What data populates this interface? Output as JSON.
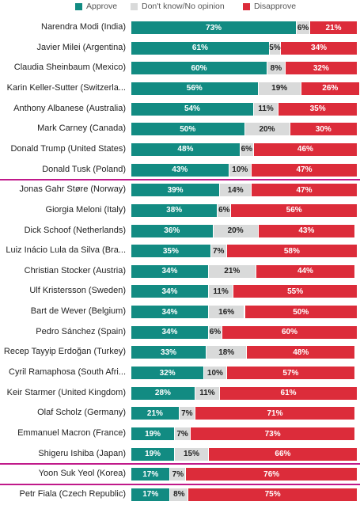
{
  "chart_data": {
    "type": "bar",
    "orientation": "horizontal",
    "stacked": true,
    "legend_position": "top",
    "legend": [
      {
        "name": "Approve",
        "color": "#128b82"
      },
      {
        "name": "Don't know/No opinion",
        "color": "#d9dada"
      },
      {
        "name": "Disapprove",
        "color": "#dc2c3a"
      }
    ],
    "categories": [
      "Narendra Modi (India)",
      "Javier Milei (Argentina)",
      "Claudia Sheinbaum (Mexico)",
      "Karin Keller-Sutter (Switzerla...",
      "Anthony Albanese (Australia)",
      "Mark Carney (Canada)",
      "Donald Trump (United States)",
      "Donald Tusk (Poland)",
      "Jonas Gahr Støre (Norway)",
      "Giorgia Meloni (Italy)",
      "Dick Schoof (Netherlands)",
      "Luiz Inácio Lula da Silva (Bra...",
      "Christian Stocker (Austria)",
      "Ulf Kristersson (Sweden)",
      "Bart de Wever (Belgium)",
      "Pedro Sánchez (Spain)",
      "Recep Tayyip Erdoğan (Turkey)",
      "Cyril Ramaphosa (South Afri...",
      "Keir Starmer (United Kingdom)",
      "Olaf Scholz (Germany)",
      "Emmanuel Macron (France)",
      "Shigeru Ishiba (Japan)",
      "Yoon Suk Yeol (Korea)",
      "Petr Fiala (Czech Republic)"
    ],
    "series": [
      {
        "name": "Approve",
        "values": [
          73,
          61,
          60,
          56,
          54,
          50,
          48,
          43,
          39,
          38,
          36,
          35,
          34,
          34,
          34,
          34,
          33,
          32,
          28,
          21,
          19,
          19,
          17,
          17
        ]
      },
      {
        "name": "Don't know/No opinion",
        "values": [
          6,
          5,
          8,
          19,
          11,
          20,
          6,
          10,
          14,
          6,
          20,
          7,
          21,
          11,
          16,
          6,
          18,
          10,
          11,
          7,
          7,
          15,
          7,
          8
        ]
      },
      {
        "name": "Disapprove",
        "values": [
          21,
          34,
          32,
          26,
          35,
          30,
          46,
          47,
          47,
          56,
          43,
          58,
          44,
          55,
          50,
          60,
          48,
          57,
          61,
          71,
          73,
          66,
          76,
          75
        ]
      }
    ],
    "value_suffix": "%",
    "highlight_after": [
      7,
      21,
      22
    ],
    "highlight_color": "#c0198a",
    "xlim": [
      0,
      100
    ]
  }
}
